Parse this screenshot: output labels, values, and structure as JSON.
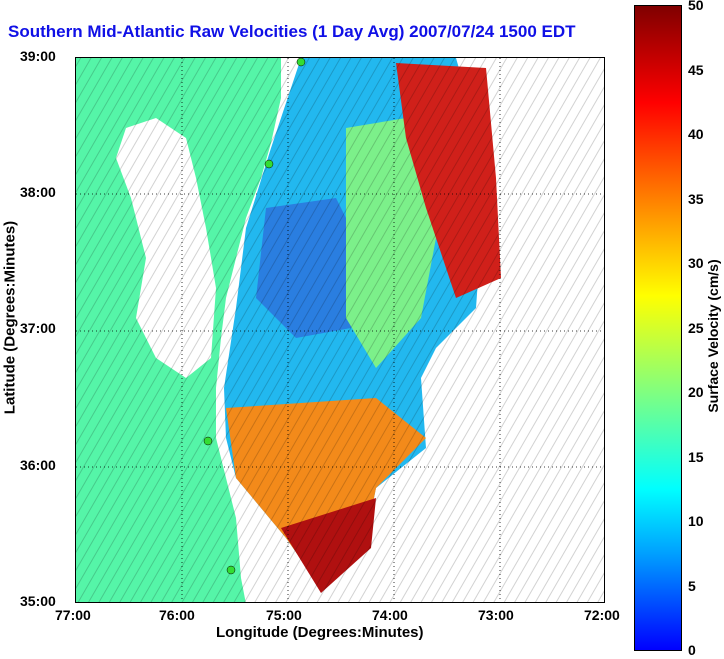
{
  "title": "Southern Mid-Atlantic Raw Velocities (1 Day Avg) 2007/07/24 1500 EDT",
  "axes": {
    "xlabel": "Longitude (Degrees:Minutes)",
    "ylabel": "Latitude (Degrees:Minutes)",
    "x_ticks": [
      "77:00",
      "76:00",
      "75:00",
      "74:00",
      "73:00",
      "72:00"
    ],
    "y_ticks": [
      "39:00",
      "38:00",
      "37:00",
      "36:00",
      "35:00"
    ]
  },
  "colorbar": {
    "label": "Surface Velocity (cm/s)",
    "ticks": [
      "50",
      "45",
      "40",
      "35",
      "30",
      "25",
      "20",
      "15",
      "10",
      "5",
      "0"
    ],
    "range": [
      0,
      50
    ],
    "colors": [
      "#0000ff",
      "#00a0ff",
      "#00ffff",
      "#80ff80",
      "#ffff00",
      "#ff8000",
      "#ff0000",
      "#800000"
    ]
  },
  "map": {
    "extent_lon": [
      -77,
      -72
    ],
    "extent_lat": [
      35,
      39
    ],
    "land_color": "#55f5a8",
    "stations": [
      "station-1",
      "station-2",
      "station-3",
      "station-4"
    ]
  }
}
